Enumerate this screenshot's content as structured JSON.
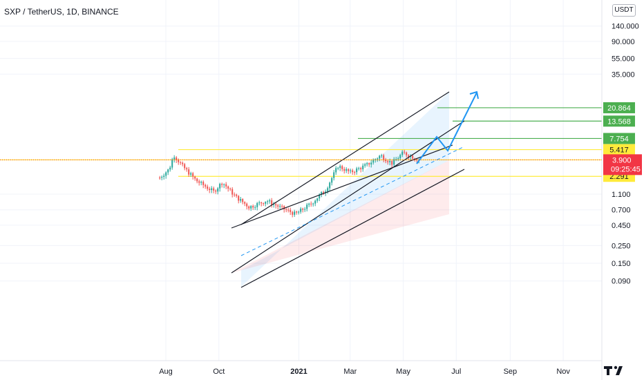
{
  "chart_data": {
    "type": "candlestick",
    "title": "SXP / TetherUS, 1D, BINANCE",
    "scale": "log",
    "unit": "USDT",
    "y_ticks": [
      "140.000",
      "90.000",
      "55.000",
      "35.000",
      "1.100",
      "0.700",
      "0.450",
      "0.250",
      "0.150",
      "0.090"
    ],
    "y_tick_values": [
      140,
      90,
      55,
      35,
      1.1,
      0.7,
      0.45,
      0.25,
      0.15,
      0.09
    ],
    "x_ticks": [
      "Aug",
      "Oct",
      "2021",
      "Mar",
      "May",
      "Jul",
      "Sep",
      "Nov"
    ],
    "x_tick_dates": [
      "2020-08-01",
      "2020-10-01",
      "2021-01-01",
      "2021-03-01",
      "2021-05-01",
      "2021-07-01",
      "2021-09-01",
      "2021-11-01"
    ],
    "price_levels": [
      {
        "label": "20.864",
        "value": 20.864,
        "color": "#4caf50"
      },
      {
        "label": "13.568",
        "value": 13.568,
        "color": "#4caf50"
      },
      {
        "label": "7.754",
        "value": 7.754,
        "color": "#4caf50"
      },
      {
        "label": "5.417",
        "value": 5.417,
        "color": "#ffeb3b"
      },
      {
        "label": "3.895",
        "value": 3.895,
        "color": "#ffeb3b"
      },
      {
        "label": "2.291",
        "value": 2.291,
        "color": "#ffeb3b"
      }
    ],
    "last_price": {
      "label": "3.900",
      "value": 3.9,
      "countdown": "09:25:45",
      "color": "#f23645"
    },
    "colors": {
      "up": "#26a69a",
      "down": "#ef5350",
      "projection": "#2196f3",
      "channel": "#131722"
    },
    "price_series": [
      {
        "date": "2020-07-25",
        "close": 2.2
      },
      {
        "date": "2020-08-05",
        "close": 2.9
      },
      {
        "date": "2020-08-10",
        "close": 4.6
      },
      {
        "date": "2020-08-20",
        "close": 3.2
      },
      {
        "date": "2020-09-05",
        "close": 2.0
      },
      {
        "date": "2020-09-25",
        "close": 1.4
      },
      {
        "date": "2020-10-05",
        "close": 1.9
      },
      {
        "date": "2020-10-20",
        "close": 1.2
      },
      {
        "date": "2020-11-05",
        "close": 0.85
      },
      {
        "date": "2020-11-25",
        "close": 1.05
      },
      {
        "date": "2020-12-10",
        "close": 0.85
      },
      {
        "date": "2020-12-28",
        "close": 0.68
      },
      {
        "date": "2021-01-15",
        "close": 0.95
      },
      {
        "date": "2021-02-01",
        "close": 1.5
      },
      {
        "date": "2021-02-15",
        "close": 3.2
      },
      {
        "date": "2021-03-01",
        "close": 2.6
      },
      {
        "date": "2021-03-20",
        "close": 3.3
      },
      {
        "date": "2021-04-05",
        "close": 4.5
      },
      {
        "date": "2021-04-18",
        "close": 3.5
      },
      {
        "date": "2021-05-01",
        "close": 4.9
      },
      {
        "date": "2021-05-10",
        "close": 4.4
      },
      {
        "date": "2021-05-20",
        "close": 3.9
      }
    ]
  }
}
